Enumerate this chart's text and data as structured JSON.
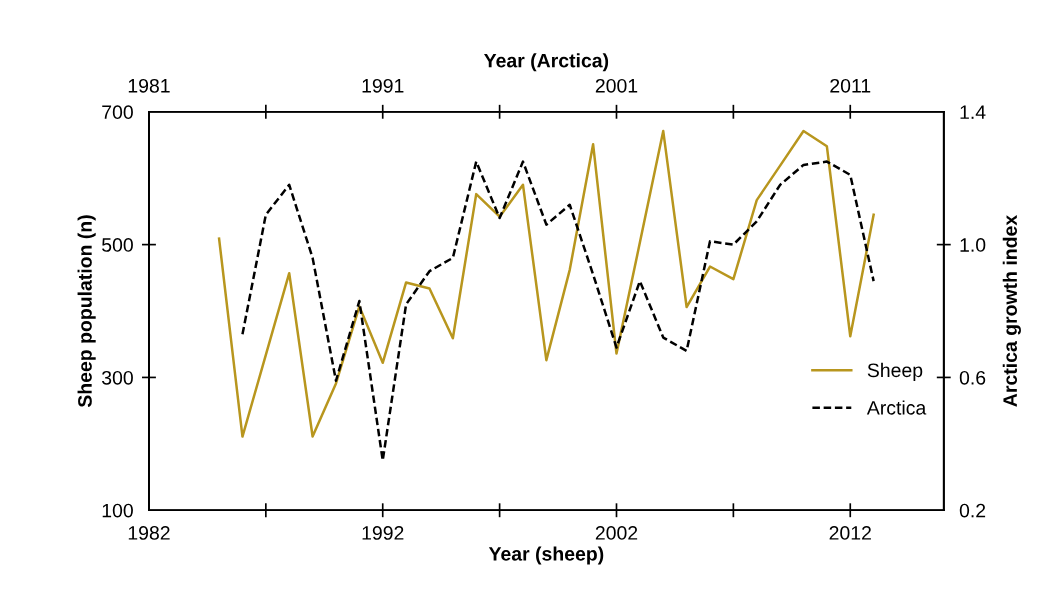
{
  "chart_data": {
    "type": "line",
    "xlabel": "Year (sheep)",
    "x2label": "Year (Arctica)",
    "ylabel": "Sheep population (n)",
    "y2label": "Arctica growth index",
    "xlim": [
      1982,
      2016
    ],
    "xticks": [
      1982,
      {
        "value": 1987,
        "label": null
      },
      1992,
      {
        "value": 1997,
        "label": null
      },
      2002,
      {
        "value": 2007,
        "label": null
      },
      2012
    ],
    "x2lim": [
      1981,
      2015
    ],
    "x2ticks": [
      1981,
      {
        "value": 1986,
        "label": null
      },
      1991,
      {
        "value": 1996,
        "label": null
      },
      2001,
      {
        "value": 2006,
        "label": null
      },
      2011
    ],
    "ylim": [
      100,
      700
    ],
    "yticks": [
      100,
      300,
      500,
      700
    ],
    "y2lim": [
      0.2,
      1.4
    ],
    "y2ticks": [
      0.2,
      0.6,
      {
        "value": 1.0,
        "label": "1.0"
      },
      1.4
    ],
    "grid": false,
    "legend": "right",
    "marker": "none",
    "series": [
      {
        "name": "Sheep",
        "color": "#b8961e",
        "line_style": "solid",
        "x": [
          1985,
          1986,
          1987,
          1988,
          1989,
          1990,
          1991,
          1992,
          1993,
          1994,
          1995,
          1996,
          1997,
          1998,
          1999,
          2000,
          2001,
          2002,
          2003,
          2004,
          2005,
          2006,
          2007,
          2008,
          2009,
          2010,
          2011,
          2012,
          2013
        ],
        "values": [
          509,
          211,
          334,
          457,
          211,
          291,
          407,
          322,
          443,
          434,
          359,
          576,
          542,
          590,
          326,
          462,
          651,
          336,
          503,
          671,
          406,
          467,
          448,
          567,
          619,
          671,
          648,
          362,
          545
        ]
      },
      {
        "name": "Arctica",
        "color": "#000000",
        "line_style": "dashed",
        "axis": "y2",
        "x": [
          1986,
          1987,
          1988,
          1989,
          1990,
          1991,
          1992,
          1993,
          1994,
          1995,
          1996,
          1997,
          1998,
          1999,
          2000,
          2001,
          2002,
          2003,
          2004,
          2005,
          2006,
          2007,
          2008,
          2009,
          2010,
          2011,
          2012,
          2013
        ],
        "values": [
          0.73,
          1.09,
          1.18,
          0.96,
          0.59,
          0.83,
          0.35,
          0.82,
          0.92,
          0.96,
          1.25,
          1.08,
          1.25,
          1.06,
          1.12,
          0.91,
          0.69,
          0.89,
          0.72,
          0.68,
          1.01,
          1.0,
          1.07,
          1.18,
          1.24,
          1.25,
          1.21,
          0.89
        ]
      }
    ]
  }
}
